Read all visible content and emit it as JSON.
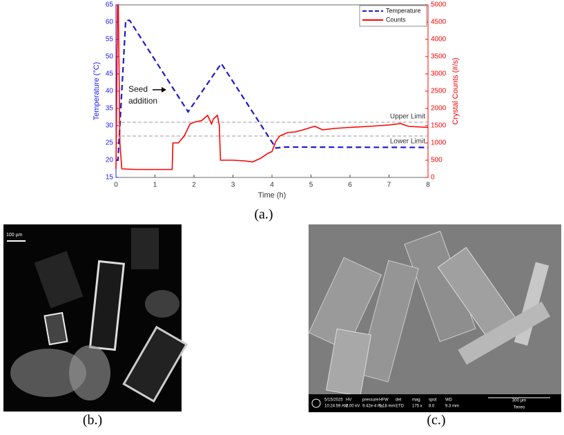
{
  "chart_data": {
    "type": "line",
    "xlabel": "Time (h)",
    "ylabel": "Temperature (°C)",
    "y2label": "Crystal Counts (#/s)",
    "xlim": [
      0,
      8
    ],
    "xticks": [
      0,
      1,
      2,
      3,
      4,
      5,
      6,
      7,
      8
    ],
    "ylim": [
      15,
      65
    ],
    "yticks": [
      15,
      20,
      25,
      30,
      35,
      40,
      45,
      50,
      55,
      60,
      65
    ],
    "y2lim": [
      0,
      5000
    ],
    "y2ticks": [
      0,
      500,
      1000,
      1500,
      2000,
      2500,
      3000,
      3500,
      4000,
      4500,
      5000
    ],
    "legend": "upper right",
    "series": [
      {
        "name": "Temperature",
        "color": "#1a1acc",
        "style": "dashed",
        "x": [
          0,
          0.05,
          0.25,
          0.35,
          1.85,
          2.7,
          4.1,
          4.3,
          8
        ],
        "values": [
          20,
          20,
          60.5,
          60.5,
          34,
          48,
          23.5,
          23.8,
          23.7
        ]
      },
      {
        "name": "Counts",
        "color": "#ff0000",
        "style": "solid",
        "axis": "y2",
        "x": [
          0,
          0.04,
          0.06,
          0.1,
          0.15,
          0.5,
          1.0,
          1.44,
          1.46,
          1.6,
          1.75,
          1.9,
          2.0,
          2.2,
          2.35,
          2.45,
          2.5,
          2.6,
          2.65,
          2.68,
          2.72,
          3.0,
          3.3,
          3.5,
          3.7,
          3.9,
          4.0,
          4.1,
          4.2,
          4.4,
          4.6,
          4.8,
          5.0,
          5.1,
          5.3,
          5.6,
          6.0,
          6.5,
          7.0,
          7.3,
          7.5,
          8.0
        ],
        "values": [
          250,
          5000,
          5000,
          1000,
          250,
          230,
          230,
          230,
          1000,
          1000,
          1200,
          1550,
          1600,
          1650,
          1800,
          1550,
          1700,
          1800,
          1500,
          500,
          500,
          500,
          480,
          450,
          550,
          700,
          750,
          1050,
          1200,
          1300,
          1320,
          1380,
          1450,
          1480,
          1380,
          1420,
          1450,
          1480,
          1520,
          1560,
          1480,
          1450
        ]
      }
    ],
    "reference_lines": [
      {
        "label": "Upper Limit",
        "value": 31
      },
      {
        "label": "Lower Limit",
        "value": 27
      }
    ],
    "annotation": [
      "Seed",
      "addition"
    ]
  },
  "figure": {
    "label_a": "(a.)",
    "label_b": "(b.)",
    "label_c": "(c.)",
    "micrograph_scale": "100 µm",
    "sem_info": [
      [
        "5/15/2025",
        "10:24:59 AM"
      ],
      [
        "HV",
        "2.00 kV"
      ],
      [
        "pressure",
        "9.42e-4 Pa"
      ],
      [
        "HFW",
        "1.18 mm"
      ],
      [
        "det",
        "ETD"
      ],
      [
        "mag",
        "175 x"
      ],
      [
        "spot",
        "8.0"
      ],
      [
        "WD",
        "9.3 mm"
      ]
    ],
    "sem_scale": "300 µm",
    "sem_brand": "Teneo"
  }
}
